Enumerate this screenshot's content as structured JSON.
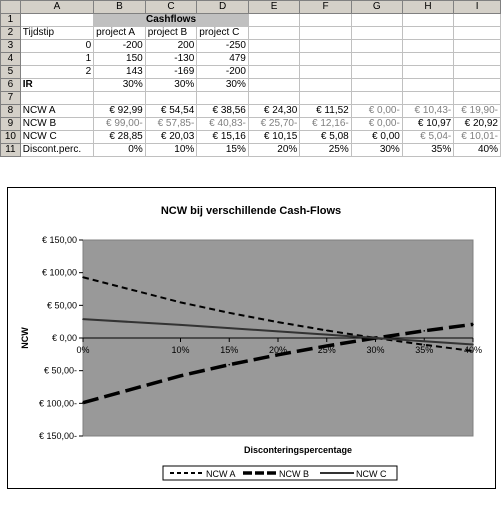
{
  "columns": [
    "",
    "A",
    "B",
    "C",
    "D",
    "E",
    "F",
    "G",
    "H",
    "I"
  ],
  "rows": [
    {
      "n": "1",
      "cells": [
        "",
        "Cashflows",
        "",
        "",
        "",
        "",
        "",
        "",
        ""
      ]
    },
    {
      "n": "2",
      "cells": [
        "Tijdstip",
        "project A",
        "project B",
        "project C",
        "",
        "",
        "",
        "",
        ""
      ]
    },
    {
      "n": "3",
      "cells": [
        "0",
        "-200",
        "200",
        "-250",
        "",
        "",
        "",
        "",
        ""
      ]
    },
    {
      "n": "4",
      "cells": [
        "1",
        "150",
        "-130",
        "479",
        "",
        "",
        "",
        "",
        ""
      ]
    },
    {
      "n": "5",
      "cells": [
        "2",
        "143",
        "-169",
        "-200",
        "",
        "",
        "",
        "",
        ""
      ]
    },
    {
      "n": "6",
      "cells": [
        "IR",
        "30%",
        "30%",
        "30%",
        "",
        "",
        "",
        "",
        ""
      ]
    },
    {
      "n": "7",
      "cells": [
        "",
        "",
        "",
        "",
        "",
        "",
        "",
        "",
        ""
      ]
    },
    {
      "n": "8",
      "cells": [
        "NCW A",
        "€ 92,99",
        "€ 54,54",
        "€ 38,56",
        "€ 24,30",
        "€ 11,52",
        "€ 0,00-",
        "€ 10,43-",
        "€ 19,90-"
      ]
    },
    {
      "n": "9",
      "cells": [
        "NCW B",
        "€ 99,00-",
        "€ 57,85-",
        "€ 40,83-",
        "€ 25,70-",
        "€ 12,16-",
        "€ 0,00-",
        "€ 10,97",
        "€ 20,92"
      ]
    },
    {
      "n": "10",
      "cells": [
        "NCW C",
        "€ 28,85",
        "€ 20,03",
        "€ 15,16",
        "€ 10,15",
        "€ 5,08",
        "€ 0,00",
        "€ 5,04-",
        "€ 10,01-"
      ]
    },
    {
      "n": "11",
      "cells": [
        "Discont.perc.",
        "0%",
        "10%",
        "15%",
        "20%",
        "25%",
        "30%",
        "35%",
        "40%"
      ]
    }
  ],
  "chart_data": {
    "type": "line",
    "title": "NCW bij verschillende Cash-Flows",
    "xlabel": "Disconteringspercentage",
    "ylabel": "NCW",
    "x": [
      0,
      10,
      15,
      20,
      25,
      30,
      35,
      40
    ],
    "x_tick_labels": [
      "0%",
      "10%",
      "15%",
      "20%",
      "25%",
      "30%",
      "35%",
      "40%"
    ],
    "y_tick_labels": [
      "€ 150,00",
      "€ 100,00",
      "€ 50,00",
      "€ 0,00",
      "€ 50,00-",
      "€ 100,00-",
      "€ 150,00-"
    ],
    "ylim": [
      -150,
      150
    ],
    "xlim": [
      0,
      40
    ],
    "plot_bg": "#999999",
    "legend_position": "bottom",
    "series": [
      {
        "name": "NCW A",
        "values": [
          92.99,
          54.54,
          38.56,
          24.3,
          11.52,
          0.0,
          -10.43,
          -19.9
        ],
        "style": "dashed",
        "color": "#000000"
      },
      {
        "name": "NCW B",
        "values": [
          -99.0,
          -57.85,
          -40.83,
          -25.7,
          -12.16,
          0.0,
          10.97,
          20.92
        ],
        "style": "long-dash-bold",
        "color": "#000000"
      },
      {
        "name": "NCW C",
        "values": [
          28.85,
          20.03,
          15.16,
          10.15,
          5.08,
          0.0,
          -5.04,
          -10.01
        ],
        "style": "solid",
        "color": "#333333"
      }
    ]
  }
}
